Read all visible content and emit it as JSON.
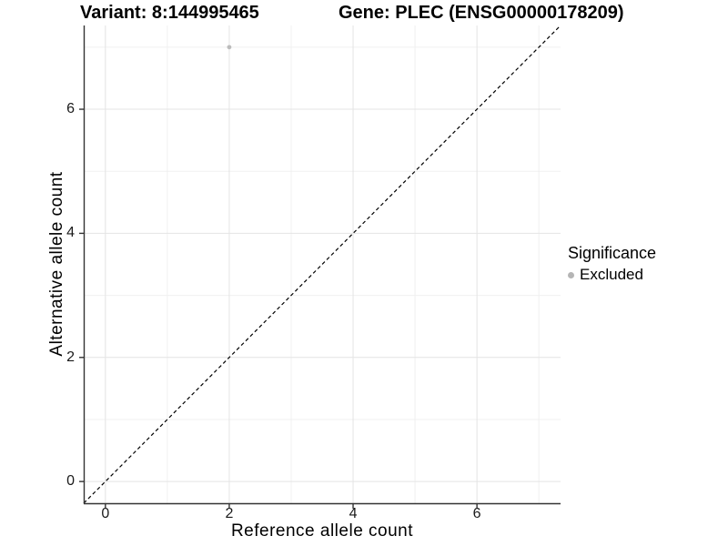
{
  "header": {
    "variant_title": "Variant: 8:144995465",
    "gene_title": "Gene: PLEC (ENSG00000178209)"
  },
  "legend": {
    "title": "Significance",
    "items": [
      {
        "label": "Excluded",
        "color": "#b5b5b5"
      }
    ]
  },
  "chart_data": {
    "type": "scatter",
    "title": "Variant: 8:144995465   Gene: PLEC (ENSG00000178209)",
    "xlabel": "Reference allele count",
    "ylabel": "Alternative allele count",
    "xlim": [
      -0.35,
      7.35
    ],
    "ylim": [
      -0.35,
      7.35
    ],
    "x_major_ticks": [
      0,
      2,
      4,
      6
    ],
    "x_minor_ticks": [
      1,
      3,
      5,
      7
    ],
    "y_major_ticks": [
      0,
      2,
      4,
      6
    ],
    "y_minor_ticks": [
      1,
      3,
      5,
      7
    ],
    "grid": "on",
    "legend_position": "right",
    "series": [
      {
        "name": "Excluded",
        "color": "#bcbcbc",
        "points": [
          {
            "x": 2,
            "y": 7
          }
        ]
      }
    ],
    "reference_line": {
      "kind": "identity y=x",
      "style": "dashed",
      "color": "#000000"
    }
  },
  "colors": {
    "background": "#ffffff",
    "grid_major": "#e4e4e4",
    "grid_minor": "#f0f0f0",
    "axis_line": "#333333",
    "tick_mark": "#333333",
    "tick_label": "#1a1a1a",
    "point": "#bcbcbc",
    "legend_key": "#b5b5b5",
    "dashed_line": "#000000"
  }
}
